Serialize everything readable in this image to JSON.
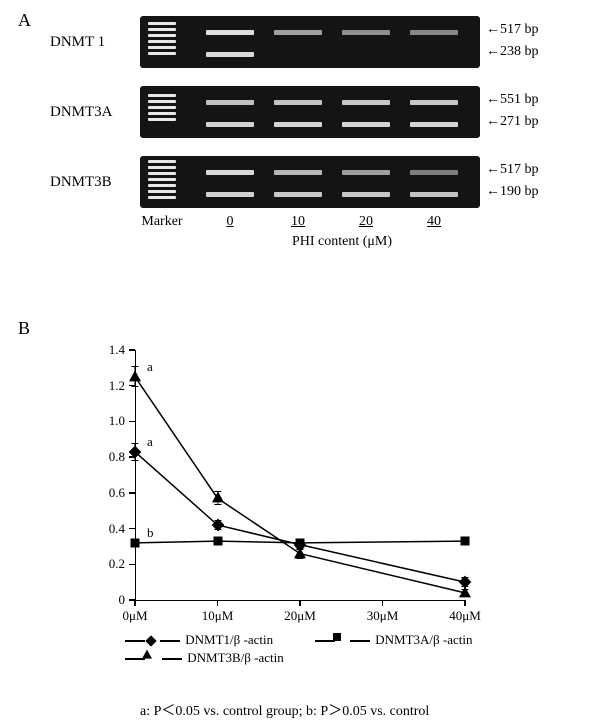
{
  "panelA": {
    "label": "A",
    "rows": [
      {
        "name": "DNMT 1",
        "bp_top": "517 bp",
        "bp_bot": "238 bp",
        "ladder": [
          6,
          12,
          18,
          24,
          30,
          36
        ],
        "lanes": [
          {
            "top": 0.95,
            "bot": 0.9
          },
          {
            "top": 0.55,
            "bot": 0.0
          },
          {
            "top": 0.45,
            "bot": 0.0
          },
          {
            "top": 0.4,
            "bot": 0.0
          }
        ]
      },
      {
        "name": "DNMT3A",
        "bp_top": "551 bp",
        "bp_bot": "271 bp",
        "ladder": [
          8,
          14,
          20,
          26,
          32
        ],
        "lanes": [
          {
            "top": 0.75,
            "bot": 0.85
          },
          {
            "top": 0.78,
            "bot": 0.88
          },
          {
            "top": 0.8,
            "bot": 0.88
          },
          {
            "top": 0.8,
            "bot": 0.88
          }
        ]
      },
      {
        "name": "DNMT3B",
        "bp_top": "517 bp",
        "bp_bot": "190 bp",
        "ladder": [
          4,
          10,
          16,
          22,
          28,
          34,
          40
        ],
        "lanes": [
          {
            "top": 0.9,
            "bot": 0.85
          },
          {
            "top": 0.7,
            "bot": 0.82
          },
          {
            "top": 0.55,
            "bot": 0.8
          },
          {
            "top": 0.35,
            "bot": 0.78
          }
        ]
      }
    ],
    "lane_labels": {
      "marker": "Marker",
      "c0": "0",
      "c10": "10",
      "c20": "20",
      "c40": "40"
    },
    "axis_title": "PHI content (μM)"
  },
  "panelB": {
    "label": "B",
    "chart": {
      "type": "line",
      "xlim": [
        0,
        40
      ],
      "ylim": [
        0,
        1.4
      ],
      "xticks": [
        0,
        10,
        20,
        30,
        40
      ],
      "xtick_labels": [
        "0μM",
        "10μM",
        "20μM",
        "30μM",
        "40μM"
      ],
      "yticks": [
        0,
        0.2,
        0.4,
        0.6,
        0.8,
        1.0,
        1.2,
        1.4
      ],
      "series": [
        {
          "key": "DNMT1/β -actin",
          "marker": "diamond",
          "pts": [
            {
              "x": 0,
              "y": 0.83,
              "e": 0.05,
              "ann": "a"
            },
            {
              "x": 10,
              "y": 0.42,
              "e": 0.03,
              "ann": ""
            },
            {
              "x": 20,
              "y": 0.31,
              "e": 0.03,
              "ann": ""
            },
            {
              "x": 40,
              "y": 0.1,
              "e": 0.03,
              "ann": ""
            }
          ]
        },
        {
          "key": "DNMT3A/β -actin",
          "marker": "square",
          "pts": [
            {
              "x": 0,
              "y": 0.32,
              "e": 0.0,
              "ann": "b"
            },
            {
              "x": 10,
              "y": 0.33,
              "e": 0.0,
              "ann": ""
            },
            {
              "x": 20,
              "y": 0.32,
              "e": 0.0,
              "ann": ""
            },
            {
              "x": 40,
              "y": 0.33,
              "e": 0.0,
              "ann": ""
            }
          ]
        },
        {
          "key": "DNMT3B/β -actin",
          "marker": "triangle",
          "pts": [
            {
              "x": 0,
              "y": 1.25,
              "e": 0.06,
              "ann": "a"
            },
            {
              "x": 10,
              "y": 0.57,
              "e": 0.04,
              "ann": ""
            },
            {
              "x": 20,
              "y": 0.26,
              "e": 0.03,
              "ann": ""
            },
            {
              "x": 40,
              "y": 0.04,
              "e": 0.02,
              "ann": ""
            }
          ]
        }
      ],
      "line_color": "#000000",
      "background": "#ffffff"
    },
    "footnote": "a: P＜0.05 vs. control group; b: P＞0.05 vs. control"
  }
}
